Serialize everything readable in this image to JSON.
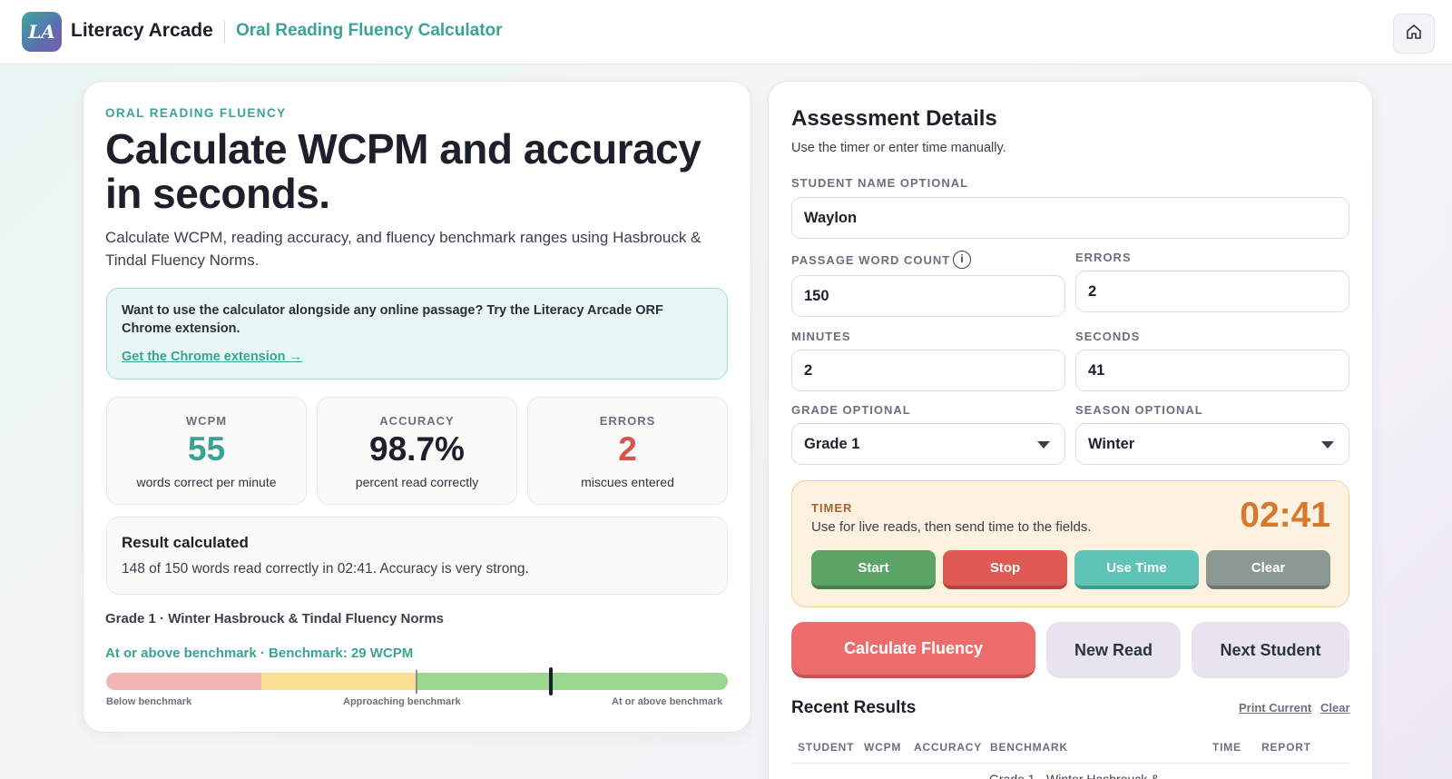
{
  "header": {
    "logo_text": "LA",
    "brand": "Literacy Arcade",
    "app_title": "Oral Reading Fluency Calculator",
    "home_icon": "home-icon"
  },
  "intro": {
    "eyebrow": "ORAL READING FLUENCY",
    "headline": "Calculate WCPM and accuracy in seconds.",
    "subtitle": "Calculate WCPM, reading accuracy, and fluency benchmark ranges using Hasbrouck & Tindal Fluency Norms."
  },
  "promo": {
    "text": "Want to use the calculator alongside any online passage? Try the Literacy Arcade ORF Chrome extension.",
    "link": "Get the Chrome extension →"
  },
  "stats": [
    {
      "label": "WCPM",
      "value": "55",
      "desc": "words correct per minute",
      "color": "#3aa394"
    },
    {
      "label": "ACCURACY",
      "value": "98.7%",
      "desc": "percent read correctly",
      "color": "#1d1f2b"
    },
    {
      "label": "ERRORS",
      "value": "2",
      "desc": "miscues entered",
      "color": "#d9534f"
    }
  ],
  "result": {
    "title": "Result calculated",
    "text": "148 of 150 words read correctly in 02:41. Accuracy is very strong."
  },
  "benchmark": {
    "norms_title": "Grade 1 · Winter Hasbrouck & Tindal Fluency Norms",
    "status": "At or above benchmark · Benchmark: 29 WCPM",
    "labels": [
      "Below benchmark",
      "Approaching benchmark",
      "At or above benchmark"
    ],
    "benchmark_wcpm": 29,
    "student_wcpm": 55
  },
  "form": {
    "title": "Assessment Details",
    "subtitle": "Use the timer or enter time manually.",
    "student_name_label": "STUDENT NAME OPTIONAL",
    "student_name": "Waylon",
    "word_count_label": "PASSAGE WORD COUNT",
    "word_count": "150",
    "errors_label": "ERRORS",
    "errors": "2",
    "minutes_label": "MINUTES",
    "minutes": "2",
    "seconds_label": "SECONDS",
    "seconds": "41",
    "grade_label": "GRADE OPTIONAL",
    "grade": "Grade 1",
    "season_label": "SEASON OPTIONAL",
    "season": "Winter"
  },
  "timer": {
    "label": "TIMER",
    "desc": "Use for live reads, then send time to the fields.",
    "value": "02:41",
    "start": "Start",
    "stop": "Stop",
    "use_time": "Use Time",
    "clear": "Clear"
  },
  "actions": {
    "calculate": "Calculate Fluency",
    "new_read": "New Read",
    "next_student": "Next Student"
  },
  "recent": {
    "title": "Recent Results",
    "print_current": "Print Current",
    "clear": "Clear",
    "columns": [
      "STUDENT",
      "WCPM",
      "ACCURACY",
      "BENCHMARK",
      "TIME",
      "REPORT"
    ],
    "row_peek": "Grade 1 · Winter Hasbrouck &"
  }
}
